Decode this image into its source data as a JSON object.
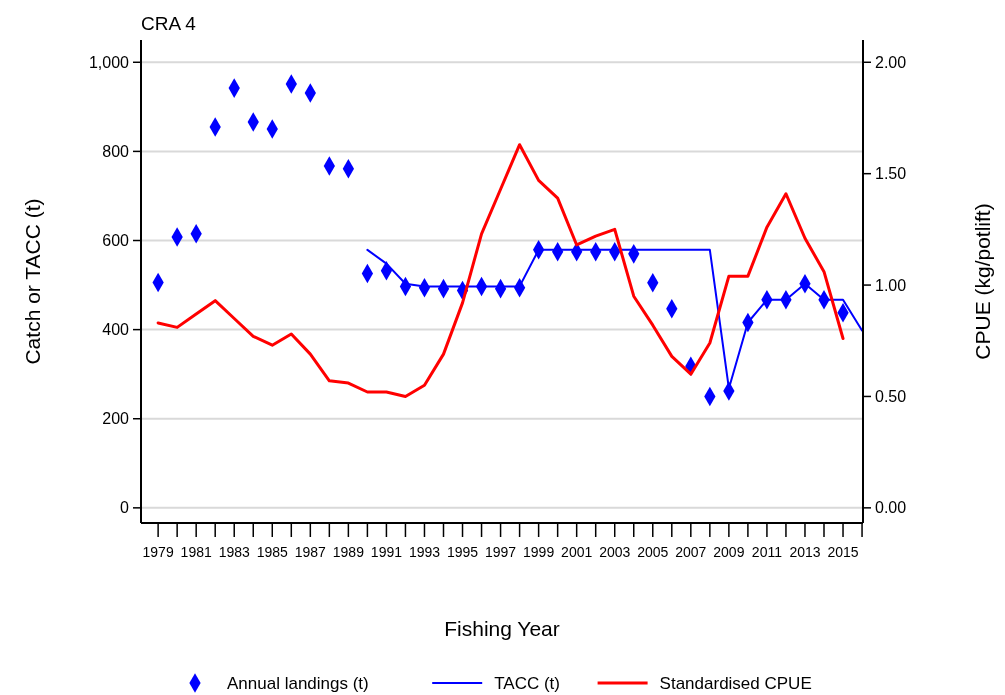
{
  "chart_data": {
    "type": "line",
    "title": "CRA 4",
    "xlabel": "Fishing Year",
    "ylabel": "Catch or TACC (t)",
    "y2label": "CPUE (kg/potlift)",
    "x": [
      1979,
      1980,
      1981,
      1982,
      1983,
      1984,
      1985,
      1986,
      1987,
      1988,
      1989,
      1990,
      1991,
      1992,
      1993,
      1994,
      1995,
      1996,
      1997,
      1998,
      1999,
      2000,
      2001,
      2002,
      2003,
      2004,
      2005,
      2006,
      2007,
      2008,
      2009,
      2010,
      2011,
      2012,
      2013,
      2014,
      2015,
      2016
    ],
    "series": [
      {
        "name": "Annual landings (t)",
        "type": "scatter",
        "marker": "diamond",
        "color": "#0000ff",
        "values": [
          506,
          608,
          615,
          855,
          942,
          866,
          850,
          951,
          931,
          767,
          761,
          526,
          532,
          497,
          494,
          492,
          488,
          497,
          492,
          494,
          579,
          575,
          575,
          575,
          575,
          570,
          505,
          447,
          318,
          250,
          262,
          416,
          467,
          467,
          503,
          467,
          438,
          null
        ]
      },
      {
        "name": "TACC (t)",
        "marker": "none",
        "color": "#0000ff",
        "values": [
          null,
          null,
          null,
          null,
          null,
          null,
          null,
          null,
          null,
          null,
          null,
          579,
          548,
          503,
          497,
          497,
          497,
          497,
          497,
          497,
          579,
          579,
          579,
          579,
          579,
          579,
          579,
          579,
          579,
          579,
          268,
          416,
          467,
          467,
          503,
          467,
          467,
          398
        ]
      },
      {
        "name": "Standardised CPUE",
        "marker": "none",
        "axis": "y2",
        "color": "#ff0000",
        "values": [
          0.83,
          0.81,
          0.87,
          0.93,
          0.85,
          0.77,
          0.73,
          0.78,
          0.69,
          0.57,
          0.56,
          0.52,
          0.52,
          0.5,
          0.55,
          0.69,
          0.92,
          1.23,
          1.43,
          1.63,
          1.47,
          1.39,
          1.18,
          1.22,
          1.25,
          0.95,
          0.82,
          0.68,
          0.6,
          0.74,
          1.04,
          1.04,
          1.26,
          1.41,
          1.21,
          1.06,
          0.76,
          null
        ]
      }
    ],
    "xlim": [
      1978.1,
      2016.05
    ],
    "xticks": [
      1979,
      {
        "value": 1980,
        "label": null
      },
      1981,
      {
        "value": 1982,
        "label": null
      },
      1983,
      {
        "value": 1984,
        "label": null
      },
      1985,
      {
        "value": 1986,
        "label": null
      },
      1987,
      {
        "value": 1988,
        "label": null
      },
      1989,
      {
        "value": 1990,
        "label": null
      },
      1991,
      {
        "value": 1992,
        "label": null
      },
      1993,
      {
        "value": 1994,
        "label": null
      },
      1995,
      {
        "value": 1996,
        "label": null
      },
      1997,
      {
        "value": 1998,
        "label": null
      },
      1999,
      {
        "value": 2000,
        "label": null
      },
      2001,
      {
        "value": 2002,
        "label": null
      },
      2003,
      {
        "value": 2004,
        "label": null
      },
      2005,
      {
        "value": 2006,
        "label": null
      },
      2007,
      {
        "value": 2008,
        "label": null
      },
      2009,
      {
        "value": 2010,
        "label": null
      },
      2011,
      {
        "value": 2012,
        "label": null
      },
      2013,
      {
        "value": 2014,
        "label": null
      },
      2015,
      {
        "value": 2016,
        "label": null
      }
    ],
    "ylim": [
      -34,
      1050
    ],
    "yticks": [
      0,
      200,
      400,
      600,
      800,
      {
        "value": 1000,
        "label": "1,000"
      }
    ],
    "y2lim": [
      -0.068,
      2.1
    ],
    "y2ticks": [
      {
        "value": 0,
        "label": "0.00"
      },
      {
        "value": 0.5,
        "label": "0.50"
      },
      {
        "value": 1,
        "label": "1.00"
      },
      {
        "value": 1.5,
        "label": "1.50"
      },
      {
        "value": 2,
        "label": "2.00"
      }
    ],
    "grid": "y",
    "legend": "bottom"
  }
}
